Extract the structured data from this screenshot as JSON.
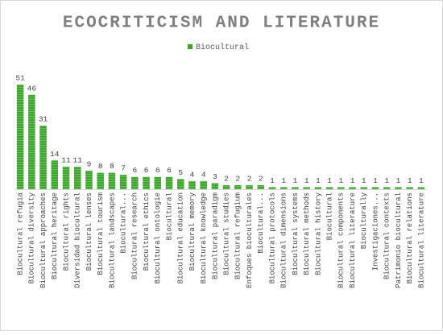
{
  "chart_data": {
    "type": "bar",
    "title": "ECOCRITICISM AND LITERATURE",
    "categories": [
      "Biocultural refugia",
      "Biocultural diversity",
      "Biocultural approaches",
      "Biocultural heritage",
      "Biocultural rights",
      "Diversidad biocultural",
      "Biocultural lenses",
      "Biocultural tourism",
      "Biocultural landscapes",
      "Biocultural...",
      "Biocultural research",
      "Biocultural ethics",
      "Biocultural ontologie",
      "Biocultural",
      "Biocultural education",
      "Biocultural memory",
      "Biocultural knowledge",
      "Biocultural paradigm",
      "Biocultural studies",
      "Biocultural refugium",
      "Enfoques bioculturales",
      "Biocultural...",
      "Biocultural protocols",
      "Biocultural dimensions",
      "Biocultural systems",
      "Biocultural methods",
      "Biocultural history",
      "Biocultural",
      "Biocultural components",
      "Biocultural literature",
      "Bioculturally",
      "Investigaciones...",
      "Biocultural contexts",
      "Patrimonio biocultural",
      "Biocultural relations",
      "Biocultural literature"
    ],
    "series": [
      {
        "name": "Biocultural",
        "color": "#3ca62a",
        "values": [
          51,
          46,
          31,
          14,
          11,
          11,
          9,
          8,
          8,
          7,
          6,
          6,
          6,
          6,
          5,
          4,
          4,
          3,
          2,
          2,
          2,
          2,
          1,
          1,
          1,
          1,
          1,
          1,
          1,
          1,
          1,
          1,
          1,
          1,
          1,
          1
        ]
      }
    ],
    "legend": "top",
    "data_labels": true
  }
}
